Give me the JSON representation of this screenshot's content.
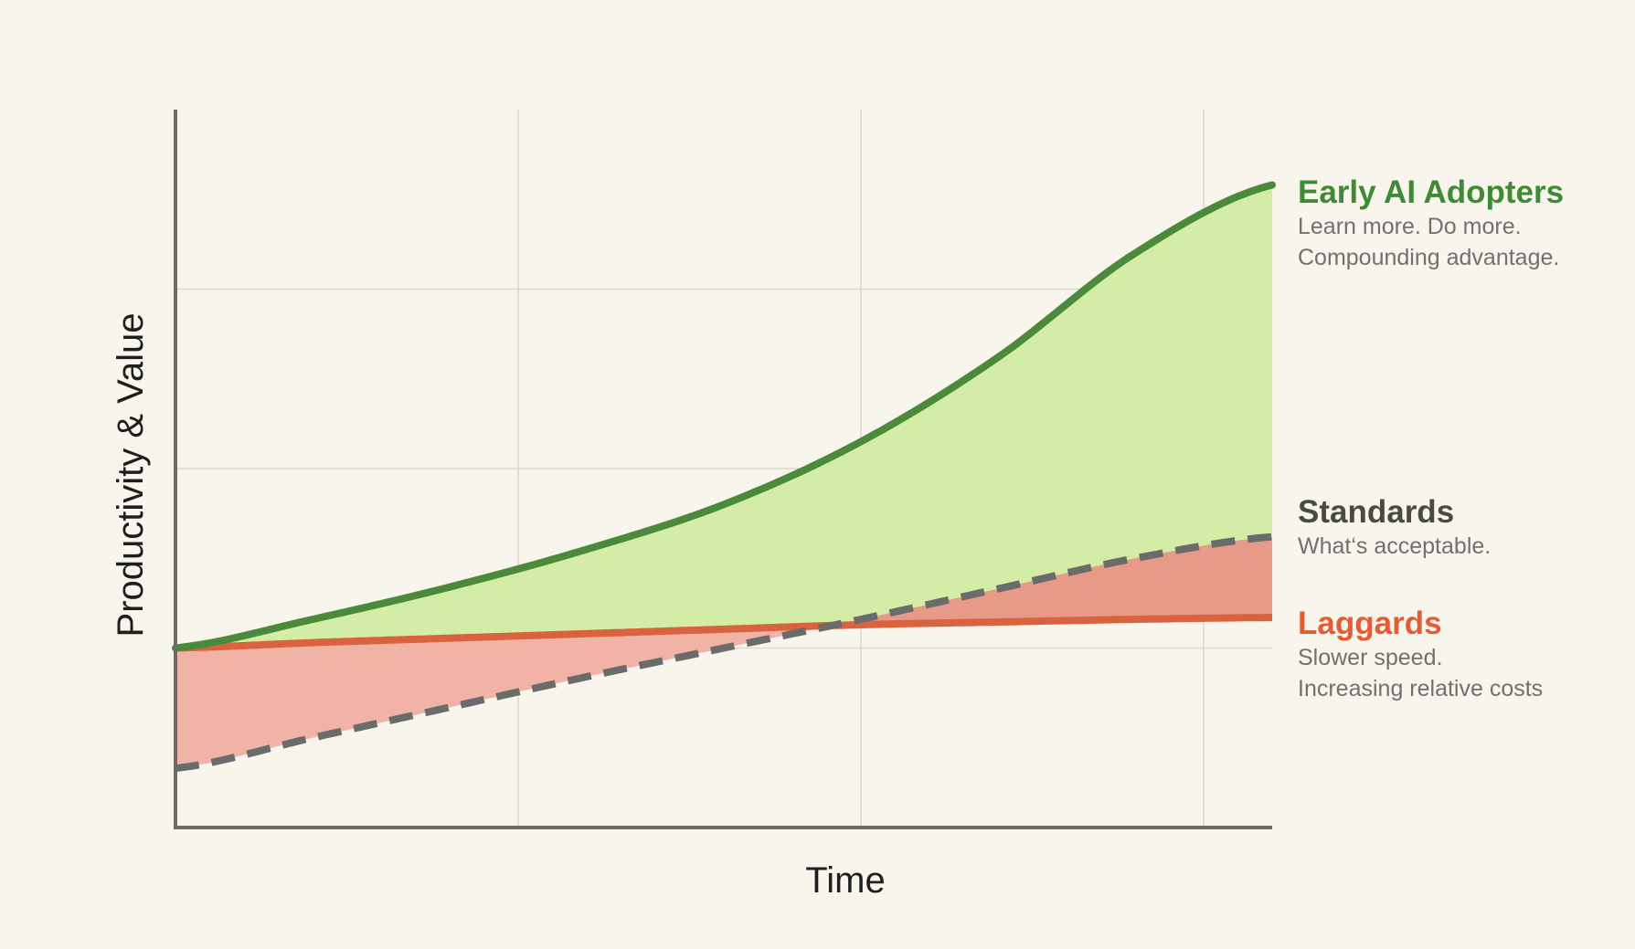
{
  "chart_data": {
    "type": "line",
    "title": "",
    "xlabel": "Time",
    "ylabel": "Productivity & Value",
    "xlim": [
      0,
      3.2
    ],
    "ylim": [
      0,
      4
    ],
    "grid": true,
    "x": [
      0,
      0.4,
      0.8,
      1.2,
      1.6,
      2.0,
      2.4,
      2.8,
      3.2
    ],
    "series": [
      {
        "name": "Early AI Adopters",
        "description": [
          "Learn more. Do more.",
          "Compounding advantage."
        ],
        "color": "#4a8a3a",
        "style": "solid",
        "values": [
          1.0,
          1.16,
          1.34,
          1.55,
          1.8,
          2.15,
          2.62,
          3.2,
          3.58
        ]
      },
      {
        "name": "Standards",
        "description": [
          "What‘s acceptable."
        ],
        "color": "#6b6b6b",
        "style": "dashed",
        "values": [
          0.33,
          0.5,
          0.67,
          0.84,
          1.0,
          1.16,
          1.33,
          1.5,
          1.62
        ]
      },
      {
        "name": "Laggards",
        "description": [
          "Slower speed.",
          "Increasing relative costs"
        ],
        "color": "#d9623f",
        "style": "solid",
        "values": [
          1.0,
          1.03,
          1.055,
          1.08,
          1.105,
          1.13,
          1.145,
          1.16,
          1.17
        ]
      }
    ],
    "fills": [
      {
        "between": [
          "Early AI Adopters",
          "Laggards"
        ],
        "color": "#d4eda6"
      },
      {
        "between": [
          "Laggards",
          "Standards"
        ],
        "color": "#f1b3a6",
        "above_color": "#e79a88"
      }
    ],
    "legend": "right"
  },
  "labels": {
    "adopters_title": "Early AI Adopters",
    "adopters_line1": "Learn more. Do more.",
    "adopters_line2": "Compounding advantage.",
    "standards_title": "Standards",
    "standards_line1": "What‘s acceptable.",
    "laggards_title": "Laggards",
    "laggards_line1": "Slower speed.",
    "laggards_line2": "Increasing relative costs"
  },
  "colors": {
    "adopters": "#3e8a35",
    "standards": "#4a4a44",
    "laggards": "#e55b34",
    "desc": "#707070"
  }
}
